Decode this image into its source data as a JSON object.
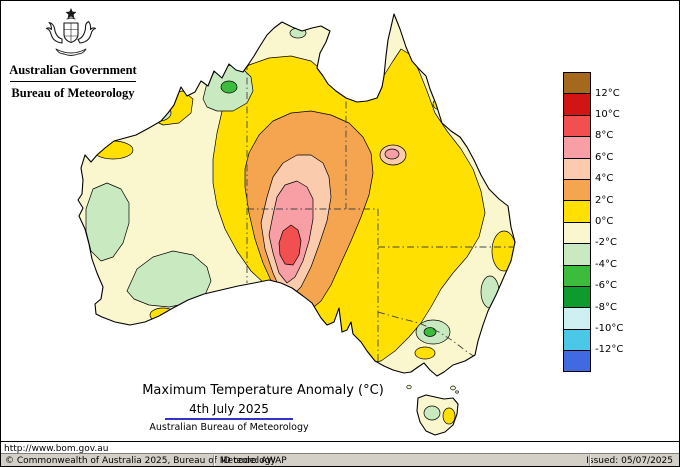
{
  "header": {
    "government": "Australian Government",
    "bureau": "Bureau of Meteorology"
  },
  "map": {
    "title": "Maximum Temperature Anomaly (°C)",
    "date": "4th July 2025",
    "attribution": "Australian Bureau of Meteorology",
    "underline_color": "#3333cc"
  },
  "legend": {
    "labels": [
      "12°C",
      "10°C",
      "8°C",
      "6°C",
      "4°C",
      "2°C",
      "0°C",
      "-2°C",
      "-4°C",
      "-6°C",
      "-8°C",
      "-10°C",
      "-12°C"
    ],
    "cells": [
      {
        "color": "#a5691e"
      },
      {
        "color": "#d21414"
      },
      {
        "color": "#f25050"
      },
      {
        "color": "#f79fa4"
      },
      {
        "color": "#fbcbae"
      },
      {
        "color": "#f5a54f"
      },
      {
        "color": "#ffe000"
      },
      {
        "color": "#faf7ce"
      },
      {
        "color": "#c9e9c0"
      },
      {
        "color": "#3cbc3c"
      },
      {
        "color": "#0d9b2d"
      },
      {
        "color": "#cff0f2"
      },
      {
        "color": "#4bc8e8"
      },
      {
        "color": "#4169e1"
      }
    ]
  },
  "map_colors": {
    "base": "#faf7ce",
    "yellow": "#ffe000",
    "orange": "#f5a54f",
    "peach": "#fbcbae",
    "pink": "#f79fa4",
    "red": "#f25050",
    "pale_green": "#c9e9c0",
    "mid_green": "#3cbc3c",
    "outline": "#000000",
    "state_border": "#444444"
  },
  "footer": {
    "url": "http://www.bom.gov.au",
    "copyright": "© Commonwealth of Australia 2025, Bureau of Meteorology",
    "id_code": "ID code: AWAP",
    "issued": "Issued: 05/07/2025",
    "bar_color": "#d4d0c8"
  },
  "chart_data": {
    "type": "heatmap",
    "subtype": "geographic-contour-anomaly-map",
    "region": "Australia",
    "title": "Maximum Temperature Anomaly (°C)",
    "date": "4th July 2025",
    "unit": "°C",
    "scale_boundaries_degC": [
      12,
      10,
      8,
      6,
      4,
      2,
      0,
      -2,
      -4,
      -6,
      -8,
      -10,
      -12
    ],
    "scale_colors_top_to_bottom": [
      "#a5691e",
      "#d21414",
      "#f25050",
      "#f79fa4",
      "#fbcbae",
      "#f5a54f",
      "#ffe000",
      "#faf7ce",
      "#c9e9c0",
      "#3cbc3c",
      "#0d9b2d",
      "#cff0f2",
      "#4bc8e8",
      "#4169e1"
    ],
    "features": [
      {
        "area": "central interior (northern SA / southern NT)",
        "anomaly_degC": "+6 to +10 peak core"
      },
      {
        "area": "broad centre and inland Queensland",
        "anomaly_degC": "+2 to +6"
      },
      {
        "area": "most of the continent margins",
        "anomaly_degC": "0 to +2"
      },
      {
        "area": "west coast, southwest interior, Kimberley patches, southeast pockets, Tasmania patch",
        "anomaly_degC": "-2 to -4"
      },
      {
        "area": "coastal fringes elsewhere",
        "anomaly_degC": "-2 to 0"
      }
    ]
  }
}
